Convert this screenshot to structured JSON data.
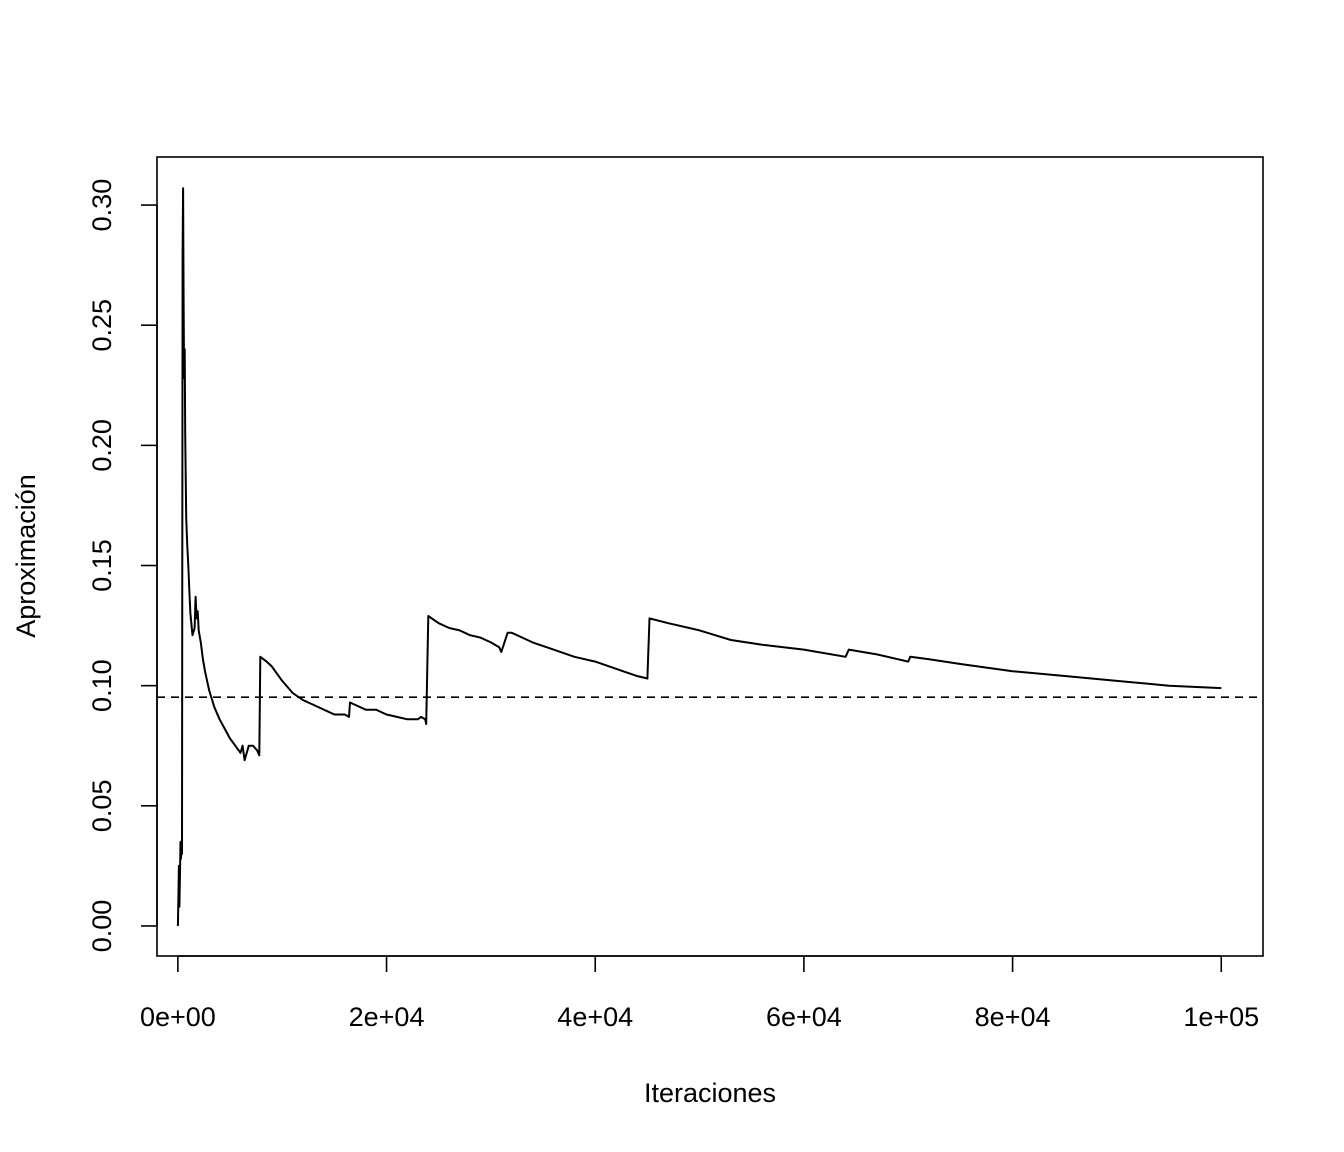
{
  "chart_data": {
    "type": "line",
    "title": "",
    "xlabel": "Iteraciones",
    "ylabel": "Aproximación",
    "xlim": [
      -2000,
      104000
    ],
    "ylim": [
      -0.0125,
      0.32
    ],
    "x_ticks": [
      {
        "value": 0,
        "label": "0e+00"
      },
      {
        "value": 20000,
        "label": "2e+04"
      },
      {
        "value": 40000,
        "label": "4e+04"
      },
      {
        "value": 60000,
        "label": "6e+04"
      },
      {
        "value": 80000,
        "label": "8e+04"
      },
      {
        "value": 100000,
        "label": "1e+05"
      }
    ],
    "y_ticks": [
      {
        "value": 0.0,
        "label": "0.00"
      },
      {
        "value": 0.05,
        "label": "0.05"
      },
      {
        "value": 0.1,
        "label": "0.10"
      },
      {
        "value": 0.15,
        "label": "0.15"
      },
      {
        "value": 0.2,
        "label": "0.20"
      },
      {
        "value": 0.25,
        "label": "0.25"
      },
      {
        "value": 0.3,
        "label": "0.30"
      }
    ],
    "reference_line": {
      "y": 0.0952,
      "style": "dashed"
    },
    "series": [
      {
        "color": "#000000",
        "x": [
          0,
          50,
          100,
          150,
          200,
          250,
          300,
          350,
          400,
          450,
          500,
          550,
          600,
          650,
          700,
          800,
          900,
          1000,
          1100,
          1200,
          1400,
          1600,
          1700,
          1800,
          1900,
          2000,
          2200,
          2400,
          2600,
          2800,
          3000,
          3500,
          4000,
          4500,
          5000,
          5500,
          6000,
          6200,
          6400,
          6800,
          7200,
          7600,
          7800,
          7900,
          8500,
          9000,
          10000,
          11000,
          12000,
          13000,
          14000,
          15000,
          16000,
          16400,
          16500,
          17000,
          18000,
          19000,
          20000,
          21000,
          22000,
          23000,
          23300,
          23700,
          23800,
          24000,
          25000,
          26000,
          27000,
          28000,
          29000,
          30000,
          30800,
          31000,
          31600,
          32000,
          34000,
          36000,
          38000,
          40000,
          42000,
          44000,
          45000,
          45200,
          47000,
          50000,
          53000,
          56000,
          60000,
          64000,
          64300,
          67000,
          69000,
          70000,
          70200,
          72000,
          75000,
          80000,
          85000,
          90000,
          95000,
          100000
        ],
        "y": [
          0.0,
          0.012,
          0.025,
          0.008,
          0.022,
          0.035,
          0.028,
          0.034,
          0.03,
          0.28,
          0.307,
          0.26,
          0.228,
          0.24,
          0.205,
          0.17,
          0.158,
          0.15,
          0.14,
          0.13,
          0.121,
          0.124,
          0.137,
          0.128,
          0.131,
          0.123,
          0.118,
          0.111,
          0.106,
          0.102,
          0.098,
          0.091,
          0.086,
          0.082,
          0.078,
          0.075,
          0.072,
          0.075,
          0.069,
          0.075,
          0.075,
          0.073,
          0.071,
          0.112,
          0.11,
          0.108,
          0.102,
          0.097,
          0.094,
          0.092,
          0.09,
          0.088,
          0.088,
          0.087,
          0.093,
          0.092,
          0.09,
          0.09,
          0.088,
          0.087,
          0.086,
          0.086,
          0.087,
          0.086,
          0.084,
          0.129,
          0.126,
          0.124,
          0.123,
          0.121,
          0.12,
          0.118,
          0.116,
          0.114,
          0.122,
          0.122,
          0.118,
          0.115,
          0.112,
          0.11,
          0.107,
          0.104,
          0.103,
          0.128,
          0.126,
          0.123,
          0.119,
          0.117,
          0.115,
          0.112,
          0.115,
          0.113,
          0.111,
          0.11,
          0.112,
          0.111,
          0.109,
          0.106,
          0.104,
          0.102,
          0.1,
          0.099
        ]
      }
    ]
  }
}
